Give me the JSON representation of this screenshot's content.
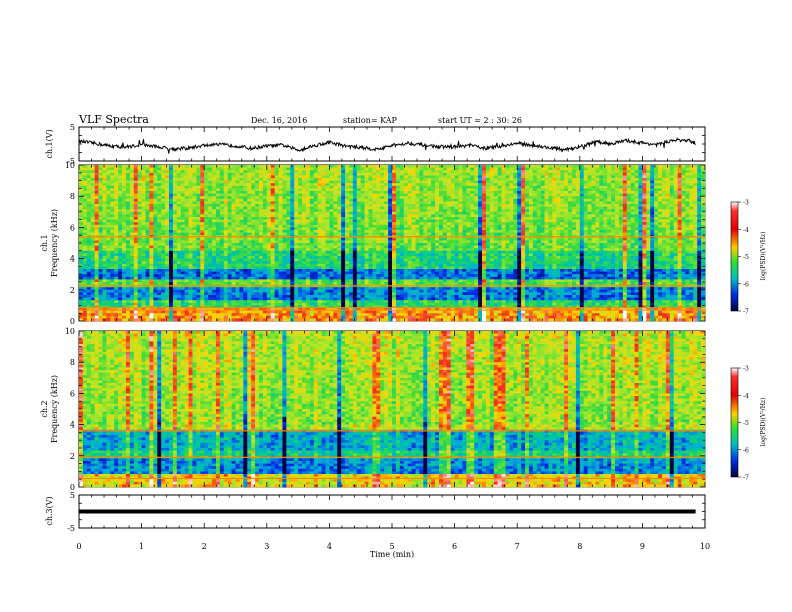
{
  "header": {
    "title": "VLF Spectra",
    "date": "Dec. 16, 2016",
    "station": "station= KAP",
    "start": "start  UT =   2 : 30: 26"
  },
  "chart_data": [
    {
      "type": "line",
      "name": "ch1-waveform",
      "ylabel": "ch.1(V)",
      "ylim": [
        -5,
        5
      ],
      "yticks": [
        "5",
        "-5"
      ],
      "xlim": [
        0,
        10
      ],
      "x": [
        0,
        0.25,
        0.5,
        0.75,
        1,
        1.25,
        1.5,
        1.75,
        2,
        2.25,
        2.5,
        2.75,
        3,
        3.25,
        3.5,
        3.75,
        4,
        4.25,
        4.5,
        4.75,
        5,
        5.25,
        5.5,
        5.75,
        6,
        6.25,
        6.5,
        6.75,
        7,
        7.25,
        7.5,
        7.75,
        8,
        8.25,
        8.5,
        8.75,
        9,
        9.25,
        9.5,
        9.75,
        9.85
      ],
      "y": [
        0.8,
        0.2,
        -0.6,
        -0.9,
        -0.2,
        -0.8,
        -1.5,
        -1.2,
        -0.4,
        -0.2,
        -0.5,
        -1.3,
        -0.6,
        -0.3,
        -1.8,
        -0.5,
        0.5,
        -0.6,
        -1.0,
        -1.6,
        -0.5,
        0.3,
        -0.3,
        -0.8,
        -0.9,
        -0.4,
        -1.3,
        -0.6,
        0.2,
        -0.4,
        -1.1,
        -1.6,
        -0.9,
        0.6,
        0.1,
        1.0,
        0.3,
        -0.2,
        1.2,
        0.9,
        0.2
      ]
    },
    {
      "type": "heatmap",
      "name": "ch1-spectrogram",
      "ylabel": "ch.1",
      "ylabel2": "Frequency (kHz)",
      "ylim": [
        0,
        10
      ],
      "yticks": [
        "0",
        "2",
        "4",
        "6",
        "8",
        "10"
      ],
      "xlim": [
        0,
        10
      ],
      "colorbar": {
        "label": "log(PSD)(V²/Hz)",
        "range": [
          -7,
          -3
        ],
        "ticks": [
          "-3",
          "-4",
          "-5",
          "-6",
          "-7"
        ]
      }
    },
    {
      "type": "heatmap",
      "name": "ch2-spectrogram",
      "ylabel": "ch.2",
      "ylabel2": "Frequency (kHz)",
      "ylim": [
        0,
        10
      ],
      "yticks": [
        "0",
        "2",
        "4",
        "6",
        "8",
        "10"
      ],
      "xlim": [
        0,
        10
      ],
      "colorbar": {
        "label": "log(PSD)(V²/Hz)",
        "range": [
          -7,
          -3
        ],
        "ticks": [
          "-3",
          "-4",
          "-5",
          "-6",
          "-7"
        ]
      }
    },
    {
      "type": "line",
      "name": "ch3-waveform",
      "ylabel": "ch.3(V)",
      "ylim": [
        -5,
        5
      ],
      "yticks": [
        "5",
        "-5"
      ],
      "xlim": [
        0,
        10
      ],
      "x": [
        0,
        9.85
      ],
      "y": [
        0,
        0
      ]
    }
  ],
  "xaxis": {
    "label": "Time  (min)",
    "ticks": [
      "0",
      "1",
      "2",
      "3",
      "4",
      "5",
      "6",
      "7",
      "8",
      "9",
      "10"
    ]
  }
}
